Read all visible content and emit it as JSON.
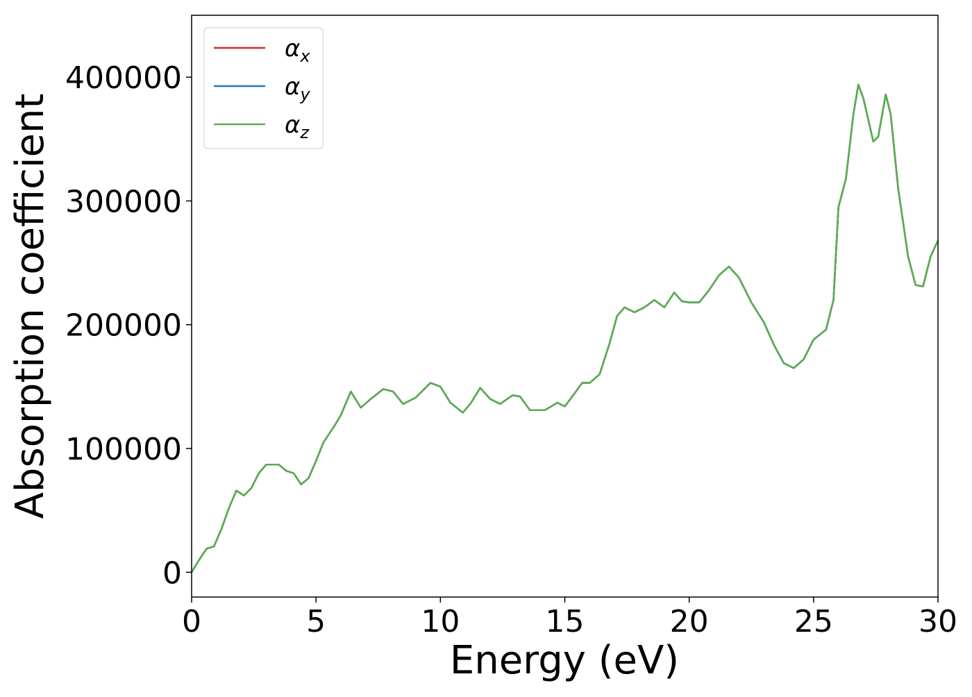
{
  "chart_data": {
    "type": "line",
    "x_label": "Energy (eV)",
    "y_label": "Absorption coefficient",
    "x": [
      0,
      0.3,
      0.6,
      0.9,
      1.2,
      1.5,
      1.8,
      2.1,
      2.4,
      2.7,
      3.0,
      3.5,
      3.8,
      4.1,
      4.4,
      4.7,
      5.0,
      5.3,
      5.7,
      6.0,
      6.4,
      6.8,
      7.2,
      7.7,
      8.1,
      8.5,
      9.0,
      9.6,
      10.0,
      10.4,
      10.9,
      11.2,
      11.6,
      12.0,
      12.4,
      12.9,
      13.2,
      13.6,
      14.2,
      14.7,
      15.0,
      15.3,
      15.7,
      16.0,
      16.4,
      16.8,
      17.1,
      17.4,
      17.8,
      18.2,
      18.6,
      19.0,
      19.4,
      19.7,
      20.0,
      20.4,
      20.8,
      21.2,
      21.6,
      22.0,
      22.5,
      23.0,
      23.4,
      23.8,
      24.2,
      24.6,
      25.0,
      25.5,
      25.8,
      26.0,
      26.3,
      26.6,
      26.8,
      27.0,
      27.4,
      27.6,
      27.9,
      28.1,
      28.4,
      28.8,
      29.1,
      29.4,
      29.7,
      30.0
    ],
    "series": [
      {
        "name": "αx",
        "color": "#d62728",
        "values": [
          0,
          10000,
          19000,
          21000,
          35000,
          52000,
          66000,
          62000,
          68000,
          80000,
          87000,
          87000,
          82000,
          80000,
          71000,
          76000,
          90000,
          105000,
          117000,
          127000,
          146000,
          133000,
          140000,
          148000,
          146000,
          136000,
          141000,
          153000,
          150000,
          137000,
          129000,
          136000,
          149000,
          140000,
          136000,
          143000,
          142000,
          131000,
          131000,
          137000,
          134000,
          142000,
          153000,
          153000,
          160000,
          185000,
          207000,
          214000,
          210000,
          214000,
          220000,
          214000,
          226000,
          219000,
          218000,
          218000,
          228000,
          240000,
          247000,
          238000,
          218000,
          202000,
          184000,
          169000,
          165000,
          172000,
          188000,
          196000,
          220000,
          295000,
          318000,
          370000,
          394000,
          383000,
          348000,
          352000,
          386000,
          370000,
          310000,
          255000,
          232000,
          231000,
          255000,
          268000
        ]
      },
      {
        "name": "αy",
        "color": "#1f77b4",
        "values": [
          0,
          10000,
          19000,
          21000,
          35000,
          52000,
          66000,
          62000,
          68000,
          80000,
          87000,
          87000,
          82000,
          80000,
          71000,
          76000,
          90000,
          105000,
          117000,
          127000,
          146000,
          133000,
          140000,
          148000,
          146000,
          136000,
          141000,
          153000,
          150000,
          137000,
          129000,
          136000,
          149000,
          140000,
          136000,
          143000,
          142000,
          131000,
          131000,
          137000,
          134000,
          142000,
          153000,
          153000,
          160000,
          185000,
          207000,
          214000,
          210000,
          214000,
          220000,
          214000,
          226000,
          219000,
          218000,
          218000,
          228000,
          240000,
          247000,
          238000,
          218000,
          202000,
          184000,
          169000,
          165000,
          172000,
          188000,
          196000,
          220000,
          295000,
          318000,
          370000,
          394000,
          383000,
          348000,
          352000,
          386000,
          370000,
          310000,
          255000,
          232000,
          231000,
          255000,
          268000
        ]
      },
      {
        "name": "αz",
        "color": "#5aad4f",
        "values": [
          0,
          10000,
          19000,
          21000,
          35000,
          52000,
          66000,
          62000,
          68000,
          80000,
          87000,
          87000,
          82000,
          80000,
          71000,
          76000,
          90000,
          105000,
          117000,
          127000,
          146000,
          133000,
          140000,
          148000,
          146000,
          136000,
          141000,
          153000,
          150000,
          137000,
          129000,
          136000,
          149000,
          140000,
          136000,
          143000,
          142000,
          131000,
          131000,
          137000,
          134000,
          142000,
          153000,
          153000,
          160000,
          185000,
          207000,
          214000,
          210000,
          214000,
          220000,
          214000,
          226000,
          219000,
          218000,
          218000,
          228000,
          240000,
          247000,
          238000,
          218000,
          202000,
          184000,
          169000,
          165000,
          172000,
          188000,
          196000,
          220000,
          295000,
          318000,
          370000,
          394000,
          383000,
          348000,
          352000,
          386000,
          370000,
          310000,
          255000,
          232000,
          231000,
          255000,
          268000
        ]
      }
    ],
    "xlim": [
      0,
      30
    ],
    "xticks": [
      0,
      5,
      10,
      15,
      20,
      25,
      30
    ],
    "ylim": [
      -20000,
      450000
    ],
    "yticks": [
      0,
      100000,
      200000,
      300000,
      400000
    ],
    "grid": false,
    "legend": "upper left"
  }
}
